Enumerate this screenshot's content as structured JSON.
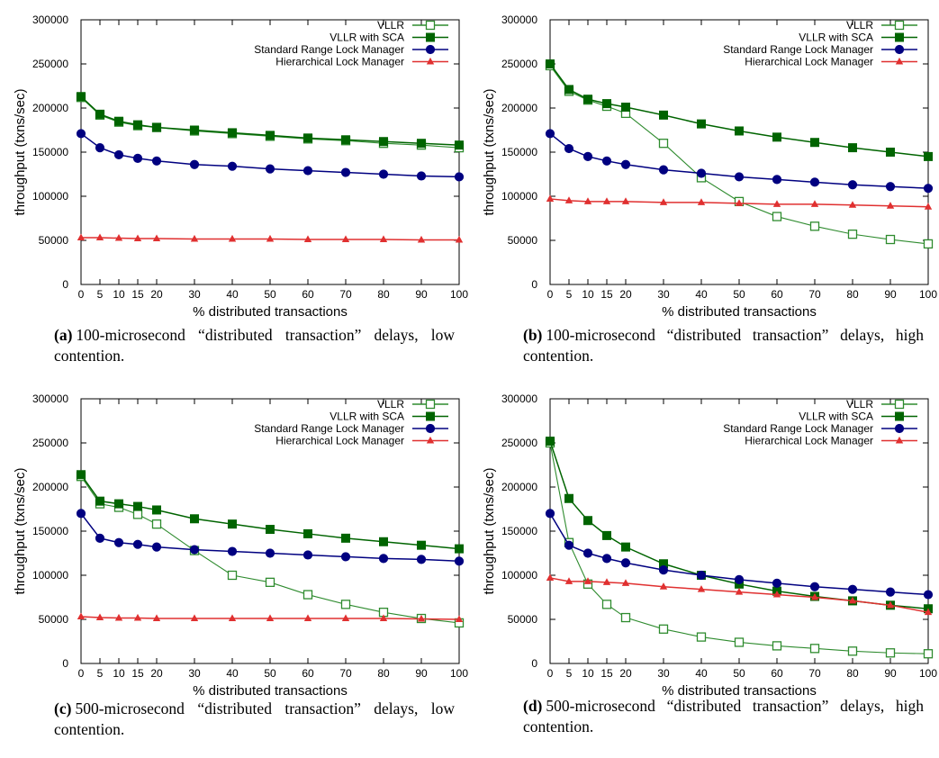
{
  "chart_data": [
    {
      "type": "line",
      "title": "",
      "xlabel": "% distributed transactions",
      "ylabel": "throughput (txns/sec)",
      "x": [
        0,
        5,
        10,
        15,
        20,
        30,
        40,
        50,
        60,
        70,
        80,
        90,
        100
      ],
      "xticks": [
        "0",
        "5",
        "10",
        "15",
        "20",
        "30",
        "40",
        "50",
        "60",
        "70",
        "80",
        "90",
        "100"
      ],
      "yticks": [
        "0",
        "50000",
        "100000",
        "150000",
        "200000",
        "250000",
        "300000"
      ],
      "ylim": [
        0,
        300000
      ],
      "legend_position": "top-right",
      "series": [
        {
          "name": "VLLR",
          "color": "#2e8b2e",
          "marker": "open-square",
          "values": [
            212000,
            192000,
            184000,
            180000,
            178000,
            174000,
            171000,
            168000,
            165000,
            163000,
            160000,
            158000,
            155000
          ]
        },
        {
          "name": "VLLR with SCA",
          "color": "#006400",
          "marker": "filled-square",
          "values": [
            213000,
            193000,
            185000,
            181000,
            178000,
            175000,
            172000,
            169000,
            166000,
            164000,
            162000,
            160000,
            158000
          ]
        },
        {
          "name": "Standard Range Lock Manager",
          "color": "#000080",
          "marker": "circle",
          "values": [
            171000,
            155000,
            147000,
            143000,
            140000,
            136000,
            134000,
            131000,
            129000,
            127000,
            125000,
            123000,
            122000
          ]
        },
        {
          "name": "Hierarchical Lock Manager",
          "color": "#e03030",
          "marker": "triangle",
          "values": [
            53000,
            53000,
            52500,
            52000,
            52000,
            51500,
            51500,
            51500,
            51000,
            51000,
            51000,
            50500,
            50500
          ]
        }
      ],
      "caption": {
        "label": "(a)",
        "text": "100-microsecond “distributed transaction” delays, low contention."
      }
    },
    {
      "type": "line",
      "title": "",
      "xlabel": "% distributed transactions",
      "ylabel": "throughput (txns/sec)",
      "x": [
        0,
        5,
        10,
        15,
        20,
        30,
        40,
        50,
        60,
        70,
        80,
        90,
        100
      ],
      "xticks": [
        "0",
        "5",
        "10",
        "15",
        "20",
        "30",
        "40",
        "50",
        "60",
        "70",
        "80",
        "90",
        "100"
      ],
      "yticks": [
        "0",
        "50000",
        "100000",
        "150000",
        "200000",
        "250000",
        "300000"
      ],
      "ylim": [
        0,
        300000
      ],
      "legend_position": "top-right",
      "series": [
        {
          "name": "VLLR",
          "color": "#2e8b2e",
          "marker": "open-square",
          "values": [
            248000,
            219000,
            209000,
            202000,
            194000,
            160000,
            121000,
            94000,
            77000,
            66000,
            57000,
            51000,
            46000
          ]
        },
        {
          "name": "VLLR with SCA",
          "color": "#006400",
          "marker": "filled-square",
          "values": [
            250000,
            221000,
            210000,
            205000,
            201000,
            192000,
            182000,
            174000,
            167000,
            161000,
            155000,
            150000,
            145000
          ]
        },
        {
          "name": "Standard Range Lock Manager",
          "color": "#000080",
          "marker": "circle",
          "values": [
            171000,
            154000,
            145000,
            140000,
            136000,
            130000,
            126000,
            122000,
            119000,
            116000,
            113000,
            111000,
            109000
          ]
        },
        {
          "name": "Hierarchical Lock Manager",
          "color": "#e03030",
          "marker": "triangle",
          "values": [
            97000,
            95000,
            94000,
            94000,
            94000,
            93000,
            93000,
            92000,
            91000,
            91000,
            90000,
            89000,
            88000
          ]
        }
      ],
      "caption": {
        "label": "(b)",
        "text": "100-microsecond “distributed transaction” delays, high contention."
      }
    },
    {
      "type": "line",
      "title": "",
      "xlabel": "% distributed transactions",
      "ylabel": "throughput (txns/sec)",
      "x": [
        0,
        5,
        10,
        15,
        20,
        30,
        40,
        50,
        60,
        70,
        80,
        90,
        100
      ],
      "xticks": [
        "0",
        "5",
        "10",
        "15",
        "20",
        "30",
        "40",
        "50",
        "60",
        "70",
        "80",
        "90",
        "100"
      ],
      "yticks": [
        "0",
        "50000",
        "100000",
        "150000",
        "200000",
        "250000",
        "300000"
      ],
      "ylim": [
        0,
        300000
      ],
      "legend_position": "top-right",
      "series": [
        {
          "name": "VLLR",
          "color": "#2e8b2e",
          "marker": "open-square",
          "values": [
            212000,
            181000,
            177000,
            169000,
            158000,
            128000,
            100000,
            92000,
            78000,
            67000,
            58000,
            51000,
            46000
          ]
        },
        {
          "name": "VLLR with SCA",
          "color": "#006400",
          "marker": "filled-square",
          "values": [
            214000,
            184000,
            181000,
            178000,
            174000,
            164000,
            158000,
            152000,
            147000,
            142000,
            138000,
            134000,
            130000
          ]
        },
        {
          "name": "Standard Range Lock Manager",
          "color": "#000080",
          "marker": "circle",
          "values": [
            170000,
            142000,
            137000,
            135000,
            132000,
            129000,
            127000,
            125000,
            123000,
            121000,
            119000,
            118000,
            116000
          ]
        },
        {
          "name": "Hierarchical Lock Manager",
          "color": "#e03030",
          "marker": "triangle",
          "values": [
            53000,
            52000,
            51500,
            51500,
            51000,
            51000,
            51000,
            51000,
            51000,
            51000,
            51000,
            50500,
            50000
          ]
        }
      ],
      "caption": {
        "label": "(c)",
        "text": "500-microsecond “distributed transaction” delays, low contention."
      }
    },
    {
      "type": "line",
      "title": "",
      "xlabel": "% distributed transactions",
      "ylabel": "throughput (txns/sec)",
      "x": [
        0,
        5,
        10,
        15,
        20,
        30,
        40,
        50,
        60,
        70,
        80,
        90,
        100
      ],
      "xticks": [
        "0",
        "5",
        "10",
        "15",
        "20",
        "30",
        "40",
        "50",
        "60",
        "70",
        "80",
        "90",
        "100"
      ],
      "yticks": [
        "0",
        "50000",
        "100000",
        "150000",
        "200000",
        "250000",
        "300000"
      ],
      "ylim": [
        0,
        300000
      ],
      "legend_position": "top-right",
      "series": [
        {
          "name": "VLLR",
          "color": "#2e8b2e",
          "marker": "open-square",
          "values": [
            250000,
            137000,
            90000,
            67000,
            52000,
            39000,
            30000,
            24000,
            20000,
            17000,
            14000,
            12000,
            11000
          ]
        },
        {
          "name": "VLLR with SCA",
          "color": "#006400",
          "marker": "filled-square",
          "values": [
            252000,
            187000,
            162000,
            145000,
            132000,
            113000,
            100000,
            90000,
            82000,
            76000,
            71000,
            66000,
            62000
          ]
        },
        {
          "name": "Standard Range Lock Manager",
          "color": "#000080",
          "marker": "circle",
          "values": [
            170000,
            134000,
            125000,
            119000,
            114000,
            106000,
            100000,
            95000,
            91000,
            87000,
            84000,
            81000,
            78000
          ]
        },
        {
          "name": "Hierarchical Lock Manager",
          "color": "#e03030",
          "marker": "triangle",
          "values": [
            97000,
            93000,
            93000,
            92000,
            91000,
            87000,
            84000,
            81000,
            78000,
            75000,
            71000,
            66000,
            58000
          ]
        }
      ],
      "caption": {
        "label": "(d)",
        "text": "500-microsecond “distributed transaction” delays, high contention."
      }
    }
  ]
}
